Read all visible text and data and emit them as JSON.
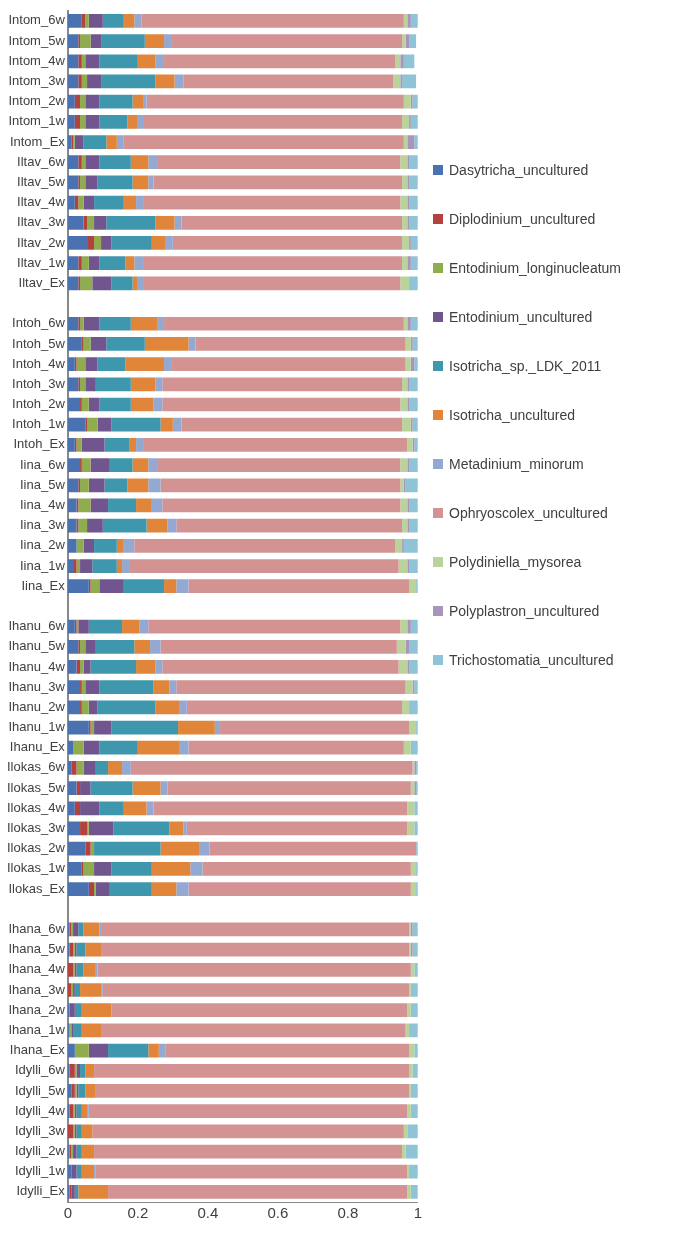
{
  "chart_data": {
    "type": "bar",
    "orientation": "horizontal",
    "stacked": true,
    "legend": "right",
    "grid": false,
    "categories": [
      "Intom_6w",
      "Intom_5w",
      "Intom_4w",
      "Intom_3w",
      "Intom_2w",
      "Intom_1w",
      "Intom_Ex",
      "Iltav_6w",
      "Iltav_5w",
      "Iltav_4w",
      "Iltav_3w",
      "Iltav_2w",
      "Iltav_1w",
      "Iltav_Ex",
      null,
      "Intoh_6w",
      "Intoh_5w",
      "Intoh_4w",
      "Intoh_3w",
      "Intoh_2w",
      "Intoh_1w",
      "Intoh_Ex",
      "Iina_6w",
      "Iina_5w",
      "Iina_4w",
      "Iina_3w",
      "Iina_2w",
      "Iina_1w",
      "Iina_Ex",
      null,
      "Ihanu_6w",
      "Ihanu_5w",
      "Ihanu_4w",
      "Ihanu_3w",
      "Ihanu_2w",
      "Ihanu_1w",
      "Ihanu_Ex",
      "Ilokas_6w",
      "Ilokas_5w",
      "Ilokas_4w",
      "Ilokas_3w",
      "Ilokas_2w",
      "Ilokas_1w",
      "Ilokas_Ex",
      null,
      "Ihana_6w",
      "Ihana_5w",
      "Ihana_4w",
      "Ihana_3w",
      "Ihana_2w",
      "Ihana_1w",
      "Ihana_Ex",
      "Idylli_6w",
      "Idylli_5w",
      "Idylli_4w",
      "Idylli_3w",
      "Idylli_2w",
      "Idylli_1w",
      "Idylli_Ex"
    ],
    "xlim": [
      0,
      1
    ],
    "xticks": [
      0,
      0.2,
      0.4,
      0.6,
      0.8,
      1
    ],
    "series": [
      {
        "name": "Dasytricha_uncultured",
        "color": "#4a72b0",
        "values": [
          0.04,
          0.03,
          0.03,
          0.03,
          0.02,
          0.02,
          0.01,
          0.03,
          0.03,
          0.02,
          0.045,
          0.055,
          0.03,
          0.03,
          null,
          0.03,
          0.04,
          0.02,
          0.03,
          0.035,
          0.05,
          0.02,
          0.035,
          0.03,
          0.025,
          0.025,
          0.025,
          0.015,
          0.06,
          null,
          0.02,
          0.03,
          0.025,
          0.035,
          0.035,
          0.06,
          0.015,
          0.01,
          0.025,
          0.02,
          0.035,
          0.05,
          0.04,
          0.06,
          null,
          0.005,
          0.005,
          0,
          0,
          0.005,
          0.005,
          0.02,
          0.005,
          0.01,
          0.005,
          0,
          0.005,
          0.01,
          0.005
        ]
      },
      {
        "name": "Diplodinium_uncultured",
        "color": "#b3423f",
        "values": [
          0.01,
          0.005,
          0.01,
          0.01,
          0.015,
          0.015,
          0.005,
          0.01,
          0.005,
          0.01,
          0.01,
          0.02,
          0.01,
          0.005,
          null,
          0.005,
          0.005,
          0.005,
          0.005,
          0.005,
          0.005,
          0.005,
          0.005,
          0.005,
          0.005,
          0.005,
          0,
          0.01,
          0.005,
          null,
          0.005,
          0.005,
          0.01,
          0.005,
          0.005,
          0.005,
          0,
          0.015,
          0.01,
          0.015,
          0.02,
          0.015,
          0.005,
          0.015,
          null,
          0.005,
          0.01,
          0.015,
          0.01,
          0,
          0,
          0,
          0.015,
          0.01,
          0.01,
          0.015,
          0.005,
          0,
          0.005
        ]
      },
      {
        "name": "Entodinium_longinucleatum",
        "color": "#8fac4f",
        "values": [
          0.01,
          0.03,
          0.01,
          0.015,
          0.015,
          0.015,
          0.005,
          0.01,
          0.015,
          0.015,
          0.02,
          0.02,
          0.02,
          0.035,
          null,
          0.01,
          0.02,
          0.025,
          0.015,
          0.02,
          0.03,
          0.015,
          0.025,
          0.025,
          0.035,
          0.025,
          0.02,
          0.01,
          0.025,
          null,
          0.005,
          0.015,
          0.01,
          0.01,
          0.02,
          0.01,
          0.03,
          0.02,
          0,
          0,
          0.005,
          0.01,
          0.03,
          0.005,
          null,
          0.005,
          0.005,
          0.005,
          0.005,
          0,
          0.005,
          0.04,
          0.005,
          0.005,
          0.005,
          0.005,
          0.005,
          0,
          0
        ]
      },
      {
        "name": "Entodinium_uncultured",
        "color": "#70558f",
        "values": [
          0.04,
          0.03,
          0.04,
          0.04,
          0.04,
          0.04,
          0.025,
          0.04,
          0.035,
          0.03,
          0.035,
          0.03,
          0.03,
          0.055,
          null,
          0.045,
          0.045,
          0.035,
          0.03,
          0.03,
          0.04,
          0.065,
          0.055,
          0.045,
          0.05,
          0.045,
          0.03,
          0.035,
          0.07,
          null,
          0.03,
          0.03,
          0.02,
          0.04,
          0.025,
          0.05,
          0.045,
          0.035,
          0.03,
          0.055,
          0.07,
          0,
          0.05,
          0.04,
          null,
          0.015,
          0.005,
          0.005,
          0.005,
          0.015,
          0.005,
          0.055,
          0.01,
          0.005,
          0.005,
          0.005,
          0.01,
          0.015,
          0.01
        ]
      },
      {
        "name": "Isotricha_sp._LDK_2011",
        "color": "#3f97ad",
        "values": [
          0.06,
          0.125,
          0.11,
          0.155,
          0.095,
          0.08,
          0.065,
          0.09,
          0.1,
          0.085,
          0.14,
          0.115,
          0.075,
          0.06,
          null,
          0.09,
          0.11,
          0.08,
          0.1,
          0.09,
          0.14,
          0.07,
          0.065,
          0.065,
          0.08,
          0.125,
          0.065,
          0.07,
          0.115,
          null,
          0.095,
          0.11,
          0.13,
          0.155,
          0.165,
          0.19,
          0.11,
          0.035,
          0.12,
          0.07,
          0.16,
          0.19,
          0.115,
          0.12,
          null,
          0.015,
          0.025,
          0.02,
          0.015,
          0.02,
          0.025,
          0.115,
          0.015,
          0.02,
          0.015,
          0.015,
          0.015,
          0.015,
          0.01
        ]
      },
      {
        "name": "Isotricha_uncultured",
        "color": "#e0853a",
        "values": [
          0.03,
          0.055,
          0.05,
          0.055,
          0.03,
          0.03,
          0.03,
          0.05,
          0.045,
          0.035,
          0.055,
          0.04,
          0.025,
          0.015,
          null,
          0.075,
          0.125,
          0.11,
          0.07,
          0.065,
          0.035,
          0.02,
          0.045,
          0.06,
          0.045,
          0.06,
          0.02,
          0.015,
          0.035,
          null,
          0.05,
          0.045,
          0.055,
          0.045,
          0.07,
          0.105,
          0.12,
          0.04,
          0.08,
          0.065,
          0.04,
          0.11,
          0.11,
          0.07,
          null,
          0.045,
          0.045,
          0.035,
          0.06,
          0.085,
          0.055,
          0.03,
          0.025,
          0.03,
          0.015,
          0.03,
          0.035,
          0.035,
          0.085
        ]
      },
      {
        "name": "Metadinium_minorum",
        "color": "#94a9d2",
        "values": [
          0.02,
          0.02,
          0.025,
          0.025,
          0.01,
          0.015,
          0.02,
          0.025,
          0.015,
          0.02,
          0.02,
          0.02,
          0.025,
          0.015,
          null,
          0.02,
          0.02,
          0.02,
          0.02,
          0.025,
          0.025,
          0.02,
          0.025,
          0.035,
          0.03,
          0.025,
          0.03,
          0.02,
          0.035,
          null,
          0.025,
          0.03,
          0.02,
          0.02,
          0.02,
          0.015,
          0.025,
          0.025,
          0.02,
          0.02,
          0.01,
          0.03,
          0.035,
          0.035,
          null,
          0.005,
          0,
          0.005,
          0.005,
          0,
          0,
          0.02,
          0,
          0,
          0.005,
          0,
          0,
          0.005,
          0
        ]
      },
      {
        "name": "Ophryoscolex_uncultured",
        "color": "#d39393",
        "values": [
          0.75,
          0.66,
          0.66,
          0.6,
          0.735,
          0.74,
          0.8,
          0.695,
          0.71,
          0.735,
          0.63,
          0.655,
          0.74,
          0.735,
          null,
          0.685,
          0.6,
          0.67,
          0.685,
          0.68,
          0.63,
          0.755,
          0.695,
          0.685,
          0.68,
          0.645,
          0.745,
          0.77,
          0.63,
          null,
          0.72,
          0.675,
          0.675,
          0.655,
          0.615,
          0.54,
          0.615,
          0.805,
          0.695,
          0.725,
          0.63,
          0.59,
          0.595,
          0.635,
          null,
          0.88,
          0.88,
          0.895,
          0.875,
          0.845,
          0.87,
          0.695,
          0.9,
          0.895,
          0.91,
          0.89,
          0.88,
          0.89,
          0.855
        ]
      },
      {
        "name": "Polydiniella_mysorea",
        "color": "#b9d39a",
        "values": [
          0.01,
          0.01,
          0.015,
          0.02,
          0.02,
          0.02,
          0.01,
          0.02,
          0.015,
          0.02,
          0.015,
          0.02,
          0.015,
          0.025,
          null,
          0.01,
          0.015,
          0.015,
          0.015,
          0.02,
          0.025,
          0.015,
          0.02,
          0.01,
          0.02,
          0.015,
          0.02,
          0.025,
          0.02,
          null,
          0.02,
          0.025,
          0.025,
          0.02,
          0.02,
          0.02,
          0.02,
          0.005,
          0.01,
          0.02,
          0.02,
          0,
          0.015,
          0.015,
          null,
          0.005,
          0.005,
          0.01,
          0.005,
          0.01,
          0.01,
          0.015,
          0.01,
          0.005,
          0.01,
          0.01,
          0.01,
          0.005,
          0.01
        ]
      },
      {
        "name": "Polyplastron_uncultured",
        "color": "#a895bb",
        "values": [
          0.01,
          0.01,
          0.01,
          0.005,
          0.005,
          0.005,
          0.02,
          0.005,
          0.005,
          0.005,
          0.005,
          0.005,
          0.01,
          0,
          null,
          0.01,
          0.005,
          0.01,
          0.005,
          0.005,
          0.005,
          0.005,
          0.005,
          0.005,
          0.005,
          0.005,
          0.005,
          0.005,
          0,
          null,
          0.01,
          0.01,
          0.005,
          0.005,
          0,
          0,
          0,
          0.005,
          0.005,
          0,
          0,
          0,
          0,
          0,
          null,
          0.005,
          0.005,
          0,
          0,
          0,
          0,
          0,
          0,
          0,
          0,
          0,
          0,
          0,
          0
        ]
      },
      {
        "name": "Trichostomatia_uncultured",
        "color": "#8fc3d6",
        "values": [
          0.02,
          0.02,
          0.03,
          0.04,
          0.015,
          0.02,
          0.01,
          0.025,
          0.025,
          0.025,
          0.025,
          0.02,
          0.02,
          0.025,
          null,
          0.02,
          0.015,
          0.01,
          0.025,
          0.025,
          0.015,
          0.01,
          0.025,
          0.035,
          0.025,
          0.025,
          0.04,
          0.025,
          0.005,
          null,
          0.02,
          0.025,
          0.025,
          0.01,
          0.025,
          0.005,
          0.02,
          0.005,
          0.005,
          0.01,
          0.01,
          0.005,
          0.005,
          0.005,
          null,
          0.015,
          0.015,
          0.01,
          0.02,
          0.02,
          0.025,
          0.01,
          0.015,
          0.02,
          0.02,
          0.03,
          0.035,
          0.025,
          0.02
        ]
      }
    ]
  }
}
